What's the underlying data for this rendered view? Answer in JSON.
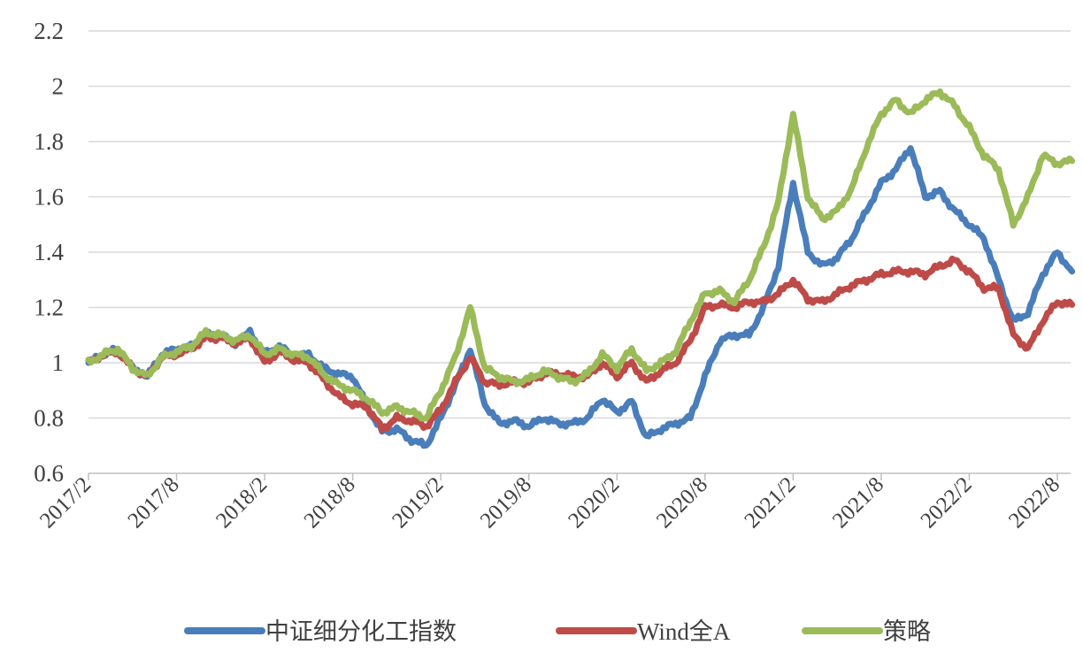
{
  "chart_data": {
    "type": "line",
    "title": "",
    "xlabel": "",
    "ylabel": "",
    "ylim": [
      0.6,
      2.2
    ],
    "yticks": [
      "0.6",
      "0.8",
      "1",
      "1.2",
      "1.4",
      "1.6",
      "1.8",
      "2",
      "2.2"
    ],
    "xticks": [
      "2017/2",
      "2017/8",
      "2018/2",
      "2018/8",
      "2019/2",
      "2019/8",
      "2020/2",
      "2020/8",
      "2021/2",
      "2021/8",
      "2022/2",
      "2022/8"
    ],
    "grid": "horizontal",
    "legend_position": "bottom",
    "x_start": "2017/2",
    "x_step": "1 month",
    "series": [
      {
        "name": "中证细分化工指数",
        "color": "#4a7ebb",
        "values": [
          1.0,
          1.03,
          1.05,
          0.98,
          0.95,
          1.03,
          1.05,
          1.06,
          1.1,
          1.1,
          1.07,
          1.11,
          1.03,
          1.06,
          1.02,
          1.03,
          0.98,
          0.96,
          0.95,
          0.84,
          0.75,
          0.76,
          0.72,
          0.7,
          0.8,
          0.92,
          1.05,
          0.85,
          0.78,
          0.79,
          0.77,
          0.8,
          0.78,
          0.78,
          0.8,
          0.87,
          0.82,
          0.86,
          0.73,
          0.76,
          0.78,
          0.8,
          0.95,
          1.08,
          1.1,
          1.1,
          1.2,
          1.35,
          1.65,
          1.4,
          1.35,
          1.38,
          1.45,
          1.55,
          1.65,
          1.7,
          1.78,
          1.6,
          1.62,
          1.55,
          1.5,
          1.45,
          1.3,
          1.15,
          1.18,
          1.32,
          1.4,
          1.33
        ]
      },
      {
        "name": "Wind全A",
        "color": "#be4b48",
        "values": [
          1.0,
          1.03,
          1.04,
          0.98,
          0.95,
          1.02,
          1.03,
          1.05,
          1.09,
          1.09,
          1.07,
          1.09,
          1.0,
          1.04,
          1.01,
          1.0,
          0.94,
          0.88,
          0.85,
          0.84,
          0.76,
          0.8,
          0.79,
          0.77,
          0.83,
          0.93,
          1.02,
          0.93,
          0.92,
          0.93,
          0.93,
          0.96,
          0.96,
          0.95,
          0.95,
          1.0,
          0.95,
          1.0,
          0.93,
          0.97,
          1.0,
          1.08,
          1.2,
          1.21,
          1.2,
          1.22,
          1.22,
          1.25,
          1.3,
          1.23,
          1.22,
          1.25,
          1.28,
          1.3,
          1.32,
          1.33,
          1.33,
          1.32,
          1.35,
          1.37,
          1.33,
          1.27,
          1.27,
          1.1,
          1.05,
          1.15,
          1.22,
          1.21
        ]
      },
      {
        "name": "策略",
        "color": "#9bbb59",
        "values": [
          1.0,
          1.03,
          1.05,
          0.98,
          0.95,
          1.02,
          1.04,
          1.06,
          1.11,
          1.1,
          1.08,
          1.1,
          1.03,
          1.05,
          1.03,
          1.02,
          0.96,
          0.92,
          0.9,
          0.87,
          0.82,
          0.84,
          0.82,
          0.8,
          0.9,
          1.02,
          1.2,
          0.98,
          0.95,
          0.93,
          0.94,
          0.97,
          0.95,
          0.93,
          0.96,
          1.03,
          0.98,
          1.05,
          0.97,
          1.0,
          1.04,
          1.15,
          1.25,
          1.26,
          1.22,
          1.3,
          1.42,
          1.58,
          1.9,
          1.6,
          1.52,
          1.55,
          1.63,
          1.78,
          1.9,
          1.95,
          1.9,
          1.95,
          1.98,
          1.93,
          1.85,
          1.75,
          1.7,
          1.5,
          1.6,
          1.75,
          1.72,
          1.73
        ]
      }
    ]
  }
}
